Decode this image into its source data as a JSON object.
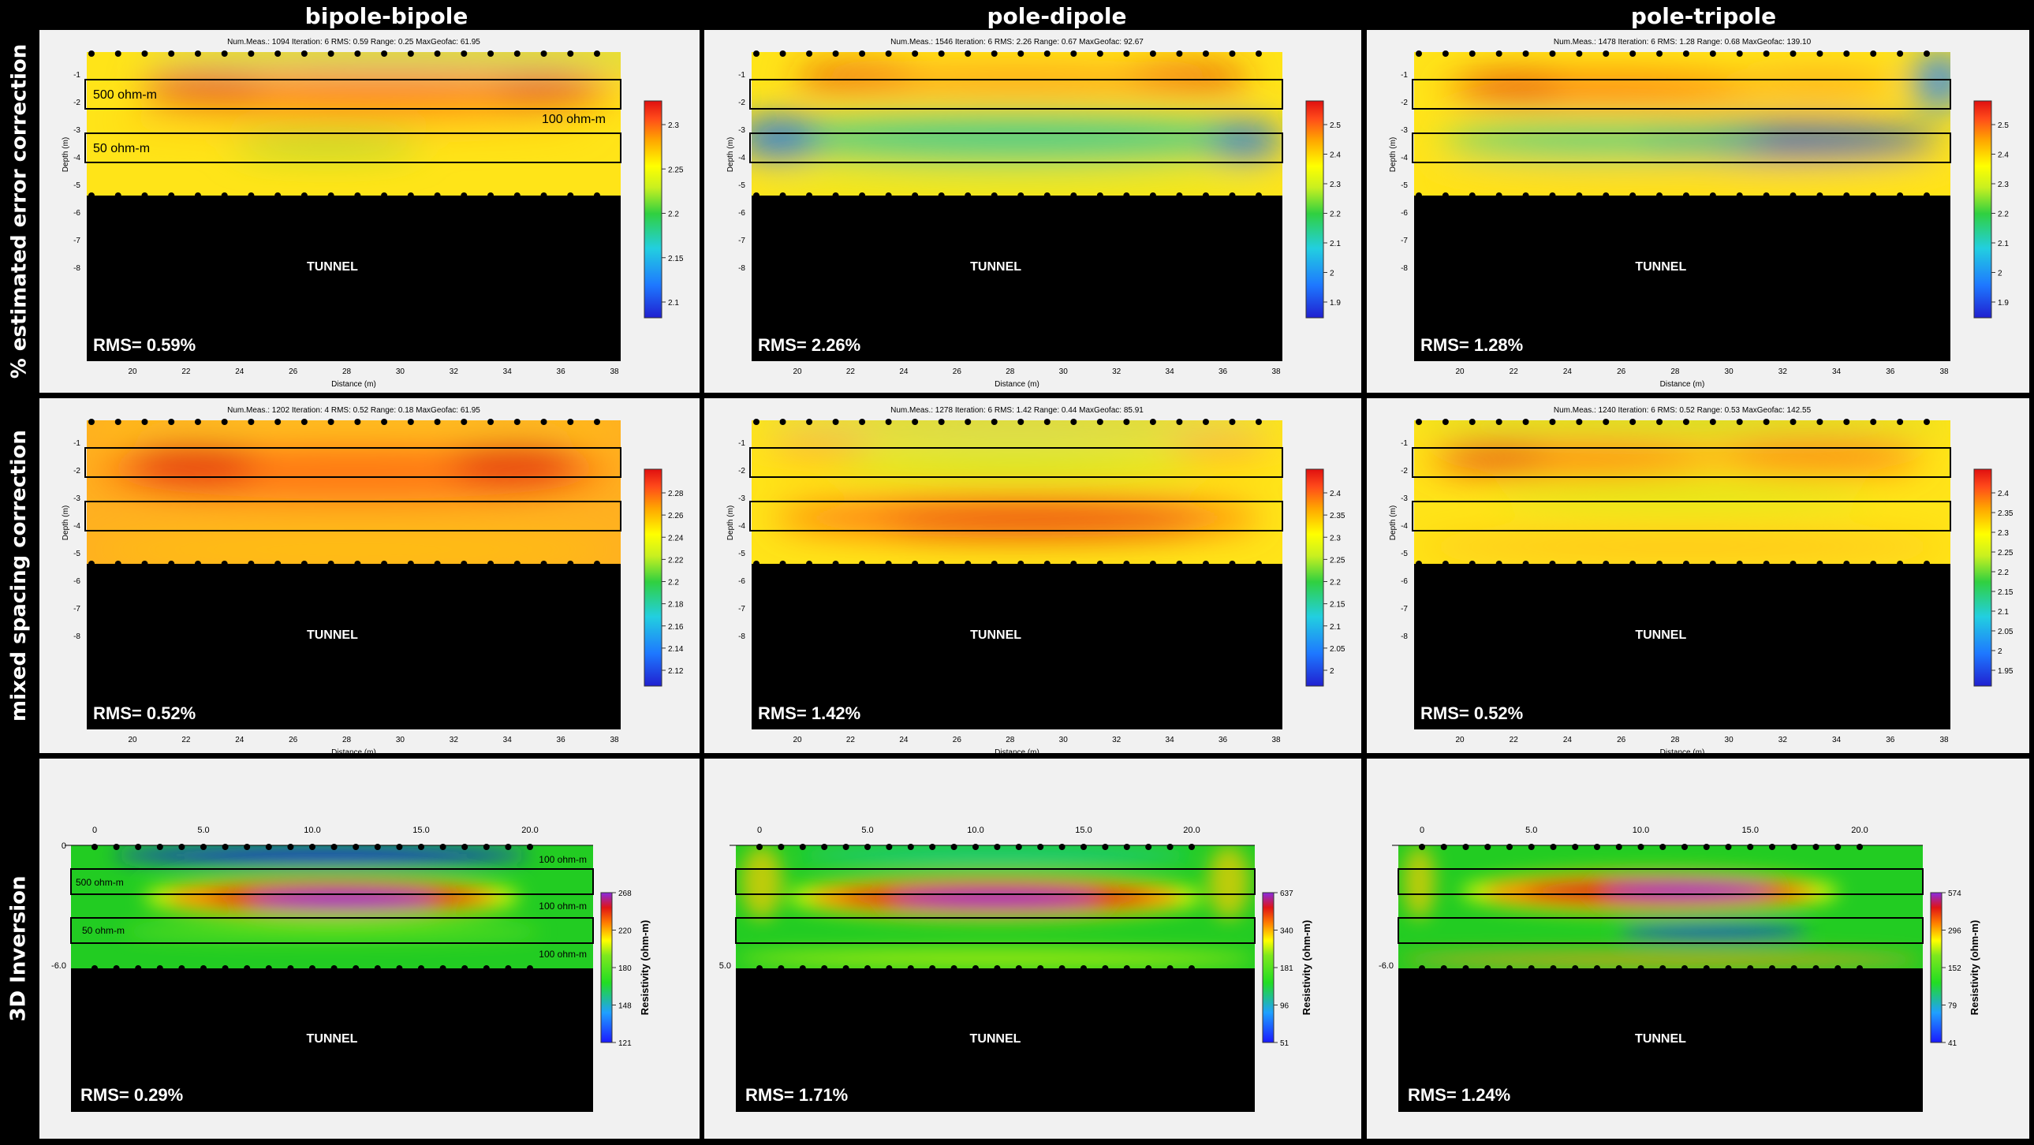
{
  "column_titles": [
    "bipole-bipole",
    "pole-dipole",
    "pole-tripole"
  ],
  "row_titles": [
    "% estimated error correction",
    "mixed spacing correction",
    "3D Inversion"
  ],
  "tunnel_label": "TUNNEL",
  "chart_data": [
    {
      "type": "heatmap",
      "panel": "r1c1",
      "style": "2d",
      "header": "Num.Meas.: 1094    Iteration: 6    RMS: 0.59    Range: 0.25    MaxGeofac: 61.95",
      "rms_label": "RMS= 0.59%",
      "xlabel": "Distance (m)",
      "ylabel": "Depth (m)",
      "x_ticks": [
        "20",
        "22",
        "24",
        "26",
        "28",
        "30",
        "32",
        "34",
        "36",
        "38"
      ],
      "y_ticks": [
        "-1",
        "-2",
        "-3",
        "-4",
        "-5",
        "-6",
        "-7",
        "-8"
      ],
      "colorbar_ticks": [
        "2.3",
        "2.25",
        "2.2",
        "2.15",
        "2.1"
      ],
      "annotations": [
        "500 ohm-m",
        "100 ohm-m",
        "50 ohm-m"
      ],
      "pattern": "a"
    },
    {
      "type": "heatmap",
      "panel": "r1c2",
      "style": "2d",
      "header": "Num.Meas.: 1546    Iteration: 6    RMS: 2.26    Range: 0.67    MaxGeofac: 92.67",
      "rms_label": "RMS= 2.26%",
      "xlabel": "Distance (m)",
      "ylabel": "Depth (m)",
      "x_ticks": [
        "20",
        "22",
        "24",
        "26",
        "28",
        "30",
        "32",
        "34",
        "36",
        "38"
      ],
      "y_ticks": [
        "-1",
        "-2",
        "-3",
        "-4",
        "-5",
        "-6",
        "-7",
        "-8"
      ],
      "colorbar_ticks": [
        "2.5",
        "2.4",
        "2.3",
        "2.2",
        "2.1",
        "2",
        "1.9"
      ],
      "annotations": [],
      "pattern": "b"
    },
    {
      "type": "heatmap",
      "panel": "r1c3",
      "style": "2d",
      "header": "Num.Meas.: 1478    Iteration: 6    RMS: 1.28    Range: 0.68    MaxGeofac: 139.10",
      "rms_label": "RMS= 1.28%",
      "xlabel": "Distance (m)",
      "ylabel": "Depth (m)",
      "x_ticks": [
        "20",
        "22",
        "24",
        "26",
        "28",
        "30",
        "32",
        "34",
        "36",
        "38"
      ],
      "y_ticks": [
        "-1",
        "-2",
        "-3",
        "-4",
        "-5",
        "-6",
        "-7",
        "-8"
      ],
      "colorbar_ticks": [
        "2.5",
        "2.4",
        "2.3",
        "2.2",
        "2.1",
        "2",
        "1.9"
      ],
      "annotations": [],
      "pattern": "c"
    },
    {
      "type": "heatmap",
      "panel": "r2c1",
      "style": "2d",
      "header": "Num.Meas.: 1202    Iteration: 4    RMS: 0.52    Range: 0.18    MaxGeofac: 61.95",
      "rms_label": "RMS= 0.52%",
      "xlabel": "Distance (m)",
      "ylabel": "Depth (m)",
      "x_ticks": [
        "20",
        "22",
        "24",
        "26",
        "28",
        "30",
        "32",
        "34",
        "36",
        "38"
      ],
      "y_ticks": [
        "-1",
        "-2",
        "-3",
        "-4",
        "-5",
        "-6",
        "-7",
        "-8"
      ],
      "colorbar_ticks": [
        "2.28",
        "2.26",
        "2.24",
        "2.22",
        "2.2",
        "2.18",
        "2.16",
        "2.14",
        "2.12"
      ],
      "annotations": [],
      "pattern": "d"
    },
    {
      "type": "heatmap",
      "panel": "r2c2",
      "style": "2d",
      "header": "Num.Meas.: 1278    Iteration: 6    RMS: 1.42    Range: 0.44    MaxGeofac: 85.91",
      "rms_label": "RMS= 1.42%",
      "xlabel": "Distance (m)",
      "ylabel": "Depth (m)",
      "x_ticks": [
        "20",
        "22",
        "24",
        "26",
        "28",
        "30",
        "32",
        "34",
        "36",
        "38"
      ],
      "y_ticks": [
        "-1",
        "-2",
        "-3",
        "-4",
        "-5",
        "-6",
        "-7",
        "-8"
      ],
      "colorbar_ticks": [
        "2.4",
        "2.35",
        "2.3",
        "2.25",
        "2.2",
        "2.15",
        "2.1",
        "2.05",
        "2"
      ],
      "annotations": [],
      "pattern": "e"
    },
    {
      "type": "heatmap",
      "panel": "r2c3",
      "style": "2d",
      "header": "Num.Meas.: 1240    Iteration: 6    RMS: 0.52    Range: 0.53    MaxGeofac: 142.55",
      "rms_label": "RMS= 0.52%",
      "xlabel": "Distance (m)",
      "ylabel": "Depth (m)",
      "x_ticks": [
        "20",
        "22",
        "24",
        "26",
        "28",
        "30",
        "32",
        "34",
        "36",
        "38"
      ],
      "y_ticks": [
        "-1",
        "-2",
        "-3",
        "-4",
        "-5",
        "-6",
        "-7",
        "-8"
      ],
      "colorbar_ticks": [
        "2.4",
        "2.35",
        "2.3",
        "2.25",
        "2.2",
        "2.15",
        "2.1",
        "2.05",
        "2",
        "1.95"
      ],
      "annotations": [],
      "pattern": "f"
    },
    {
      "type": "heatmap",
      "panel": "r3c1",
      "style": "3d",
      "rms_label": "RMS= 0.29%",
      "x_ticks": [
        "0",
        "5.0",
        "10.0",
        "15.0",
        "20.0"
      ],
      "y_ticks": [
        "0",
        "-6.0"
      ],
      "colorbar_label": "Resistivity (ohm-m)",
      "colorbar_ticks": [
        "268",
        "220",
        "180",
        "148",
        "121"
      ],
      "annotations": [
        "100 ohm-m",
        "500 ohm-m",
        "100 ohm-m",
        "50 ohm-m",
        "100 ohm-m"
      ],
      "pattern": "g"
    },
    {
      "type": "heatmap",
      "panel": "r3c2",
      "style": "3d",
      "rms_label": "RMS= 1.71%",
      "x_ticks": [
        "0",
        "5.0",
        "10.0",
        "15.0",
        "20.0"
      ],
      "y_ticks": [
        "5.0"
      ],
      "colorbar_label": "Resistivity (ohm-m)",
      "colorbar_ticks": [
        "637",
        "340",
        "181",
        "96",
        "51"
      ],
      "annotations": [],
      "pattern": "h"
    },
    {
      "type": "heatmap",
      "panel": "r3c3",
      "style": "3d",
      "rms_label": "RMS= 1.24%",
      "x_ticks": [
        "0",
        "5.0",
        "10.0",
        "15.0",
        "20.0"
      ],
      "y_ticks": [
        "-6.0"
      ],
      "colorbar_label": "Resistivity (ohm-m)",
      "colorbar_ticks": [
        "574",
        "296",
        "152",
        "79",
        "41"
      ],
      "annotations": [],
      "pattern": "i"
    }
  ]
}
